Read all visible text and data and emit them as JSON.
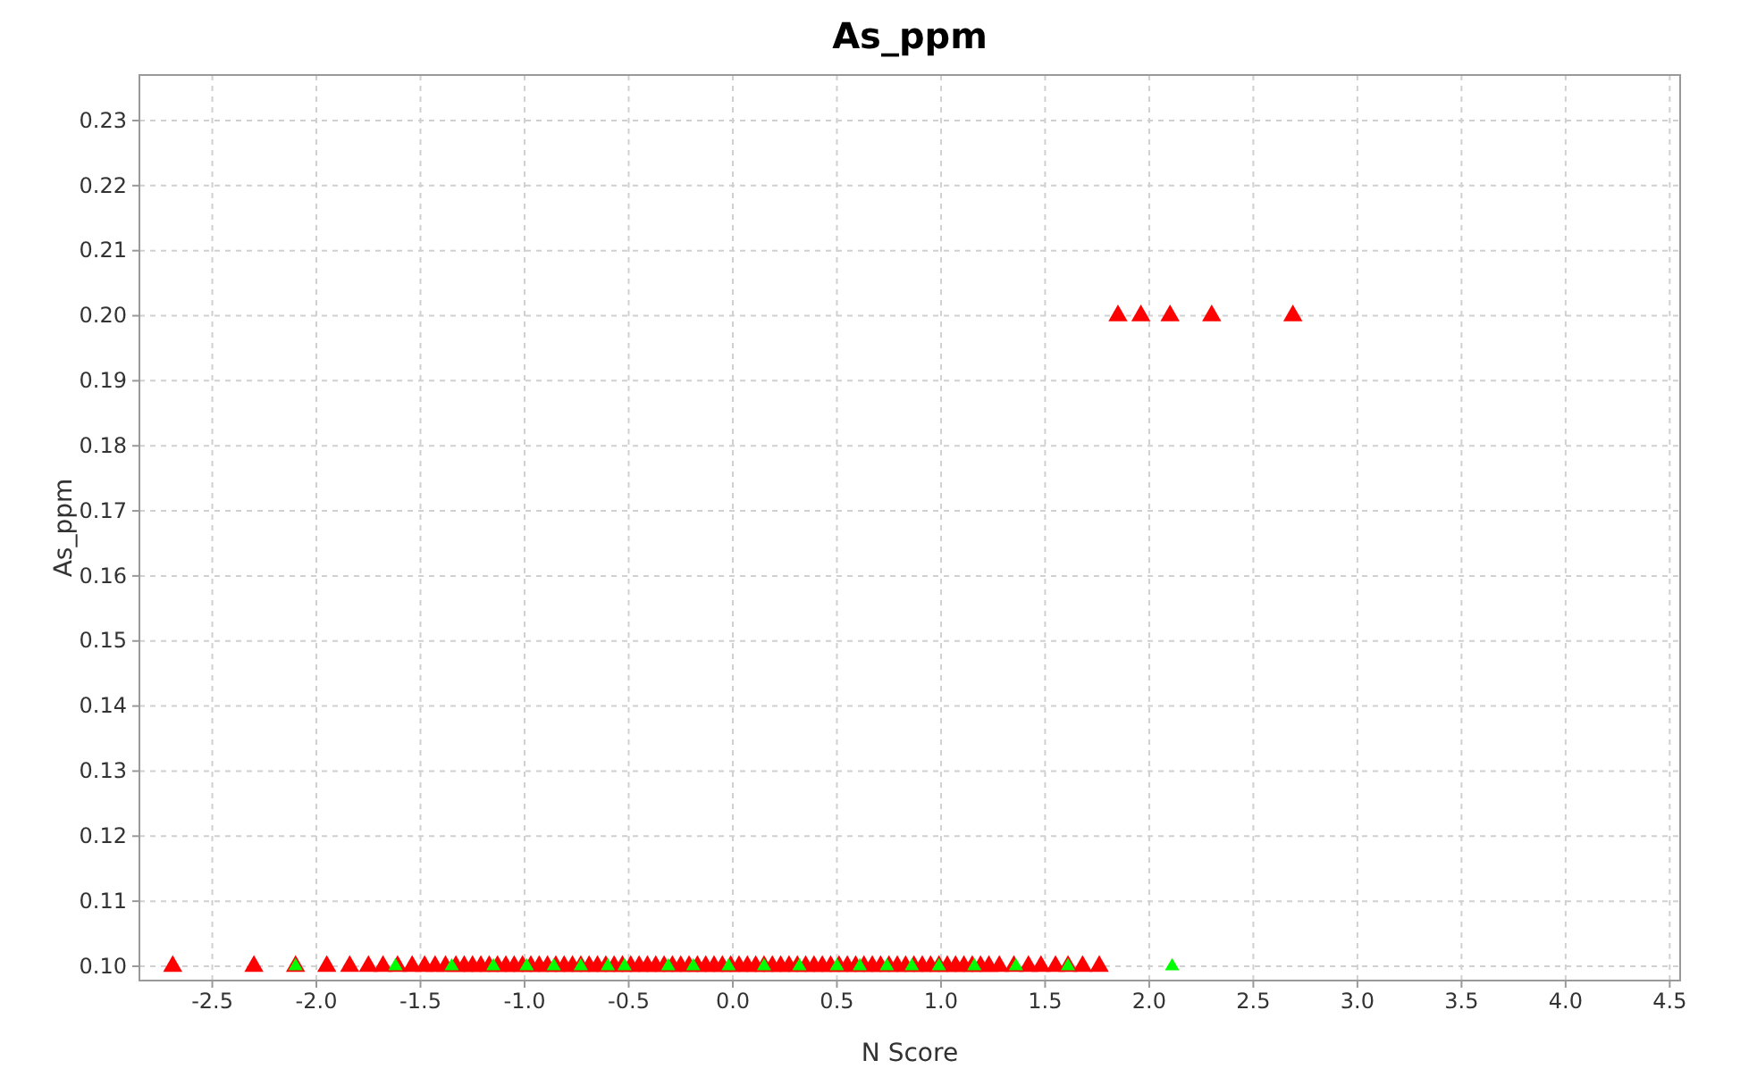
{
  "chart_data": {
    "type": "scatter",
    "title": "As_ppm",
    "xlabel": "N Score",
    "ylabel": "As_ppm",
    "xlim": [
      -2.85,
      4.55
    ],
    "ylim": [
      0.0978,
      0.237
    ],
    "xticks": [
      -2.5,
      {
        "value": -2,
        "label": "-2.0"
      },
      -1.5,
      {
        "value": -1,
        "label": "-1.0"
      },
      -0.5,
      {
        "value": 0,
        "label": "0.0"
      },
      0.5,
      {
        "value": 1,
        "label": "1.0"
      },
      1.5,
      {
        "value": 2,
        "label": "2.0"
      },
      2.5,
      {
        "value": 3,
        "label": "3.0"
      },
      3.5,
      {
        "value": 4,
        "label": "4.0"
      },
      4.5
    ],
    "yticks": [
      {
        "value": 0.1,
        "label": "0.10"
      },
      0.11,
      0.12,
      0.13,
      0.14,
      0.15,
      0.16,
      0.17,
      0.18,
      0.19,
      {
        "value": 0.2,
        "label": "0.20"
      },
      0.21,
      0.22,
      0.23
    ],
    "grid": true,
    "marker": "triangle",
    "series": [
      {
        "color": "#ff0000",
        "x": [
          -2.69,
          -2.3,
          -2.1,
          -1.95,
          -1.84,
          -1.75,
          -1.68,
          -1.61,
          -1.54,
          -1.48,
          -1.43,
          -1.38,
          -1.33,
          -1.29,
          -1.25,
          -1.21,
          -1.17,
          -1.13,
          -1.09,
          -1.05,
          -1.01,
          -0.97,
          -0.93,
          -0.89,
          -0.85,
          -0.81,
          -0.77,
          -0.73,
          -0.69,
          -0.65,
          -0.61,
          -0.57,
          -0.53,
          -0.49,
          -0.45,
          -0.41,
          -0.37,
          -0.33,
          -0.29,
          -0.25,
          -0.21,
          -0.17,
          -0.13,
          -0.09,
          -0.05,
          -0.01,
          0.03,
          0.07,
          0.11,
          0.15,
          0.19,
          0.23,
          0.27,
          0.31,
          0.35,
          0.39,
          0.43,
          0.47,
          0.51,
          0.55,
          0.59,
          0.63,
          0.67,
          0.71,
          0.75,
          0.79,
          0.83,
          0.87,
          0.91,
          0.95,
          0.99,
          1.03,
          1.07,
          1.11,
          1.15,
          1.19,
          1.23,
          1.28,
          1.35,
          1.42,
          1.48,
          1.55,
          1.61,
          1.68,
          1.76,
          1.85,
          1.96,
          2.1,
          2.3,
          2.69
        ],
        "values": [
          0.1,
          0.1,
          0.1,
          0.1,
          0.1,
          0.1,
          0.1,
          0.1,
          0.1,
          0.1,
          0.1,
          0.1,
          0.1,
          0.1,
          0.1,
          0.1,
          0.1,
          0.1,
          0.1,
          0.1,
          0.1,
          0.1,
          0.1,
          0.1,
          0.1,
          0.1,
          0.1,
          0.1,
          0.1,
          0.1,
          0.1,
          0.1,
          0.1,
          0.1,
          0.1,
          0.1,
          0.1,
          0.1,
          0.1,
          0.1,
          0.1,
          0.1,
          0.1,
          0.1,
          0.1,
          0.1,
          0.1,
          0.1,
          0.1,
          0.1,
          0.1,
          0.1,
          0.1,
          0.1,
          0.1,
          0.1,
          0.1,
          0.1,
          0.1,
          0.1,
          0.1,
          0.1,
          0.1,
          0.1,
          0.1,
          0.1,
          0.1,
          0.1,
          0.1,
          0.1,
          0.1,
          0.1,
          0.1,
          0.1,
          0.1,
          0.1,
          0.1,
          0.1,
          0.1,
          0.1,
          0.1,
          0.1,
          0.1,
          0.1,
          0.1,
          0.2,
          0.2,
          0.2,
          0.2,
          0.2
        ]
      },
      {
        "color": "#00ff00",
        "x": [
          -2.1,
          -1.62,
          -1.35,
          -1.15,
          -0.99,
          -0.86,
          -0.73,
          -0.6,
          -0.52,
          -0.31,
          -0.19,
          -0.02,
          0.15,
          0.32,
          0.5,
          0.61,
          0.74,
          0.86,
          0.99,
          1.16,
          1.36,
          1.61,
          2.11
        ],
        "values": [
          0.1,
          0.1,
          0.1,
          0.1,
          0.1,
          0.1,
          0.1,
          0.1,
          0.1,
          0.1,
          0.1,
          0.1,
          0.1,
          0.1,
          0.1,
          0.1,
          0.1,
          0.1,
          0.1,
          0.1,
          0.1,
          0.1,
          0.1
        ]
      }
    ]
  }
}
